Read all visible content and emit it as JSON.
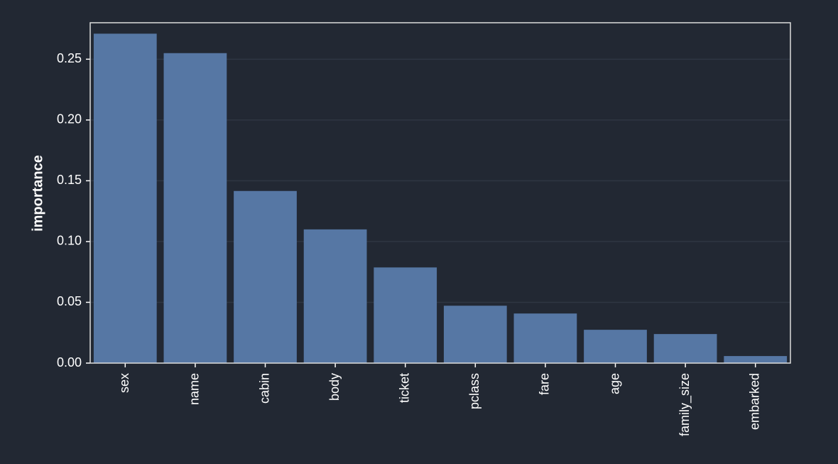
{
  "chart_data": {
    "type": "bar",
    "y_label": "importance",
    "categories": [
      "sex",
      "name",
      "cabin",
      "body",
      "ticket",
      "pclass",
      "fare",
      "age",
      "family_size",
      "embarked"
    ],
    "values": [
      0.271,
      0.255,
      0.1416,
      0.11,
      0.0787,
      0.0472,
      0.0408,
      0.0274,
      0.0239,
      0.0058
    ],
    "color": "#5677a4",
    "ylim": [
      0,
      0.28
    ],
    "yticks": [
      {
        "value": 0,
        "label": "0.00"
      },
      {
        "value": 0.05,
        "label": "0.05"
      },
      {
        "value": 0.1,
        "label": "0.10"
      },
      {
        "value": 0.15,
        "label": "0.15"
      },
      {
        "value": 0.2,
        "label": "0.20"
      },
      {
        "value": 0.25,
        "label": "0.25"
      }
    ],
    "grid": true
  }
}
